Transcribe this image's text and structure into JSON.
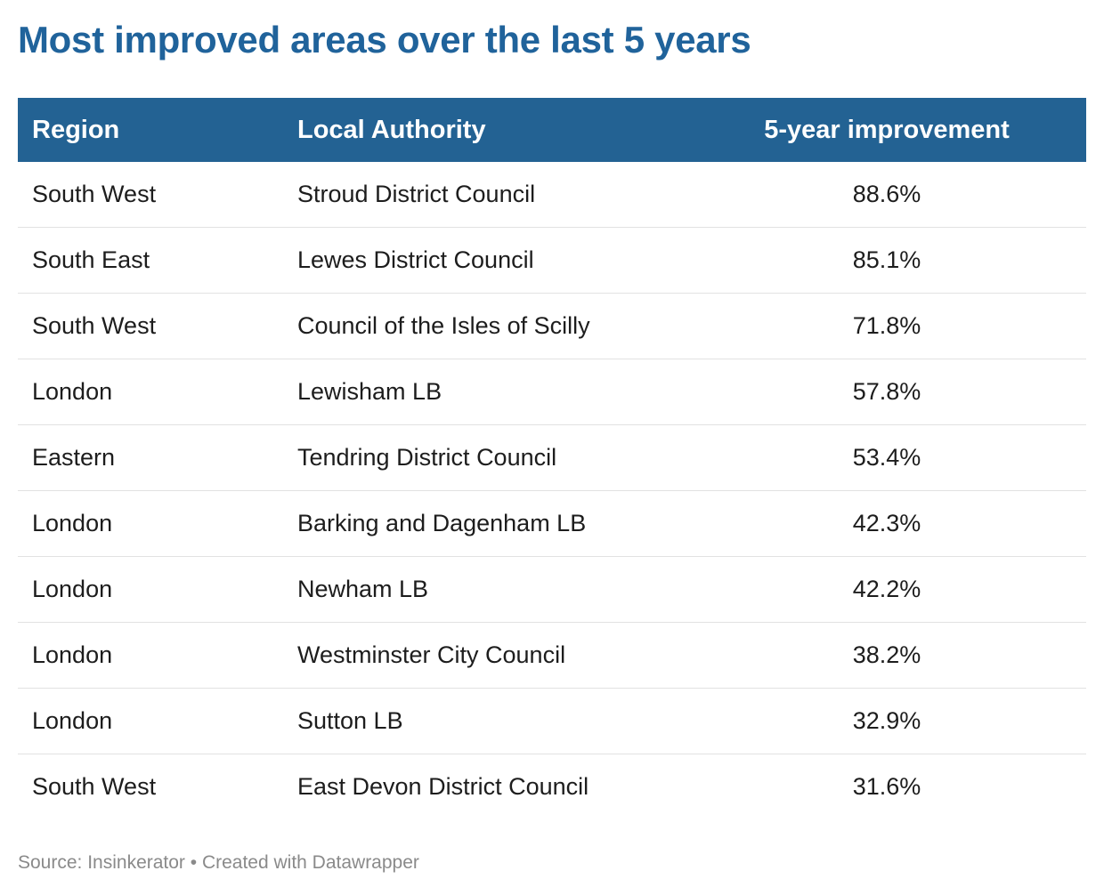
{
  "title": "Most improved areas over the last 5 years",
  "chart_data": {
    "type": "table",
    "title": "Most improved areas over the last 5 years",
    "columns": [
      "Region",
      "Local Authority",
      "5-year improvement"
    ],
    "rows": [
      {
        "region": "South West",
        "authority": "Stroud District Council",
        "improvement": "88.6%"
      },
      {
        "region": "South East",
        "authority": "Lewes District Council",
        "improvement": "85.1%"
      },
      {
        "region": "South West",
        "authority": "Council of the Isles of Scilly",
        "improvement": "71.8%"
      },
      {
        "region": "London",
        "authority": "Lewisham LB",
        "improvement": "57.8%"
      },
      {
        "region": "Eastern",
        "authority": "Tendring District Council",
        "improvement": "53.4%"
      },
      {
        "region": "London",
        "authority": "Barking and Dagenham LB",
        "improvement": "42.3%"
      },
      {
        "region": "London",
        "authority": "Newham LB",
        "improvement": "42.2%"
      },
      {
        "region": "London",
        "authority": "Westminster City Council",
        "improvement": "38.2%"
      },
      {
        "region": "London",
        "authority": "Sutton LB",
        "improvement": "32.9%"
      },
      {
        "region": "South West",
        "authority": "East Devon District Council",
        "improvement": "31.6%"
      }
    ]
  },
  "footer": {
    "text": "Source: Insinkerator • Created with Datawrapper"
  },
  "colors": {
    "title": "#20639b",
    "header_bg": "#236293",
    "header_text": "#ffffff",
    "row_divider": "#e2e2e2",
    "footer_text": "#8a8a8a"
  }
}
